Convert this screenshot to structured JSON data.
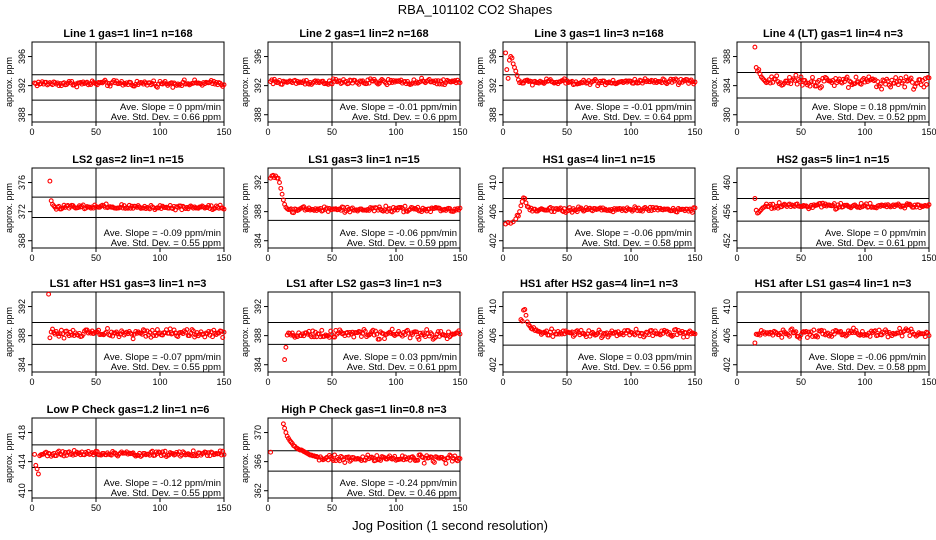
{
  "figure": {
    "title": "RBA_101102  CO2 Shapes",
    "xlabel": "Jog Position (1 second resolution)"
  },
  "chart_data": [
    {
      "type": "scatter",
      "title": "Line 1 gas=1 lin=1 n=168",
      "ylabel": "approx. ppm",
      "xlim": [
        0,
        150
      ],
      "xticks": [
        0,
        50,
        100,
        150
      ],
      "ylim": [
        387,
        398
      ],
      "yticks": [
        388,
        392,
        396
      ],
      "hlines": [
        393.5,
        390
      ],
      "mean": 392.3,
      "noise": 0.25,
      "slope": "Ave. Slope =  0  ppm/min",
      "sd": "Ave. Std. Dev. =  0.66  ppm",
      "x_start": 2,
      "transient": []
    },
    {
      "type": "scatter",
      "title": "Line 2 gas=1 lin=2 n=168",
      "ylabel": "approx. ppm",
      "xlim": [
        0,
        150
      ],
      "xticks": [
        0,
        50,
        100,
        150
      ],
      "ylim": [
        387,
        398
      ],
      "yticks": [
        388,
        392,
        396
      ],
      "hlines": [
        393.5,
        390
      ],
      "mean": 392.5,
      "noise": 0.25,
      "slope": "Ave. Slope =  -0.01  ppm/min",
      "sd": "Ave. Std. Dev. =  0.6  ppm",
      "x_start": 2,
      "transient": []
    },
    {
      "type": "scatter",
      "title": "Line 3 gas=1 lin=3 n=168",
      "ylabel": "approx. ppm",
      "xlim": [
        0,
        150
      ],
      "xticks": [
        0,
        50,
        100,
        150
      ],
      "ylim": [
        387,
        398
      ],
      "yticks": [
        388,
        392,
        396
      ],
      "hlines": [
        393.5,
        390
      ],
      "mean": 392.5,
      "noise": 0.25,
      "slope": "Ave. Slope =  -0.01  ppm/min",
      "sd": "Ave. Std. Dev. =  0.64  ppm",
      "x_start": 14,
      "transient": [
        [
          2,
          396.5
        ],
        [
          3,
          394.2
        ],
        [
          4,
          393
        ],
        [
          5,
          395.5
        ],
        [
          6,
          396
        ],
        [
          7,
          395.8
        ],
        [
          8,
          395
        ],
        [
          9,
          394.5
        ],
        [
          10,
          394
        ],
        [
          11,
          393.4
        ],
        [
          12,
          392.8
        ],
        [
          13,
          392.4
        ]
      ]
    },
    {
      "type": "scatter",
      "title": "Line 4 (LT) gas=1 lin=4 n=3",
      "ylabel": "approx. ppm",
      "xlim": [
        0,
        150
      ],
      "xticks": [
        0,
        50,
        100,
        150
      ],
      "ylim": [
        379,
        390
      ],
      "yticks": [
        380,
        384,
        388
      ],
      "hlines": [
        385.8,
        382.3
      ],
      "mean": 384.5,
      "noise": 0.5,
      "slope": "Ave. Slope =  0.18  ppm/min",
      "sd": "Ave. Std. Dev. =  0.52  ppm",
      "x_start": 24,
      "transient": [
        [
          14,
          389.3
        ],
        [
          15,
          386.5
        ],
        [
          16,
          386
        ],
        [
          17,
          386.2
        ],
        [
          18,
          385.6
        ],
        [
          19,
          385.2
        ],
        [
          20,
          385
        ],
        [
          21,
          384.8
        ],
        [
          22,
          384.6
        ],
        [
          23,
          384.4
        ]
      ]
    },
    {
      "type": "scatter",
      "title": "LS2 gas=2 lin=1 n=15",
      "ylabel": "approx. ppm",
      "xlim": [
        0,
        150
      ],
      "xticks": [
        0,
        50,
        100,
        150
      ],
      "ylim": [
        367,
        378
      ],
      "yticks": [
        368,
        372,
        376
      ],
      "hlines": [
        374,
        371.2
      ],
      "mean": 372.6,
      "noise": 0.22,
      "slope": "Ave. Slope =  -0.09  ppm/min",
      "sd": "Ave. Std. Dev. =  0.55  ppm",
      "x_start": 18,
      "transient": [
        [
          14,
          376.2
        ],
        [
          15,
          373.5
        ],
        [
          16,
          373
        ],
        [
          17,
          372.8
        ]
      ]
    },
    {
      "type": "scatter",
      "title": "LS1 gas=3 lin=1 n=15",
      "ylabel": "approx. ppm",
      "xlim": [
        0,
        150
      ],
      "xticks": [
        0,
        50,
        100,
        150
      ],
      "ylim": [
        383,
        394
      ],
      "yticks": [
        384,
        388,
        392
      ],
      "hlines": [
        389.8,
        386.8
      ],
      "mean": 388.3,
      "noise": 0.22,
      "slope": "Ave. Slope =  -0.06  ppm/min",
      "sd": "Ave. Std. Dev. =  0.59  ppm",
      "x_start": 16,
      "transient": [
        [
          2,
          392.6
        ],
        [
          3,
          392.9
        ],
        [
          4,
          393
        ],
        [
          5,
          392.7
        ],
        [
          6,
          392.9
        ],
        [
          7,
          392.6
        ],
        [
          8,
          392.6
        ],
        [
          9,
          392
        ],
        [
          10,
          391.2
        ],
        [
          11,
          390.4
        ],
        [
          12,
          389.6
        ],
        [
          13,
          389
        ],
        [
          14,
          388.6
        ],
        [
          15,
          388.4
        ]
      ]
    },
    {
      "type": "scatter",
      "title": "HS1 gas=4 lin=1 n=15",
      "ylabel": "approx. ppm",
      "xlim": [
        0,
        150
      ],
      "xticks": [
        0,
        50,
        100,
        150
      ],
      "ylim": [
        401,
        412
      ],
      "yticks": [
        402,
        406,
        410
      ],
      "hlines": [
        407.8,
        404.7
      ],
      "mean": 406.3,
      "noise": 0.22,
      "slope": "Ave. Slope =  -0.06  ppm/min",
      "sd": "Ave. Std. Dev. =  0.58  ppm",
      "x_start": 20,
      "transient": [
        [
          2,
          404.3
        ],
        [
          4,
          404.5
        ],
        [
          6,
          404.4
        ],
        [
          8,
          404.6
        ],
        [
          10,
          405
        ],
        [
          11,
          405.5
        ],
        [
          12,
          405.4
        ],
        [
          13,
          406
        ],
        [
          14,
          406.8
        ],
        [
          15,
          407.4
        ],
        [
          16,
          407.9
        ],
        [
          17,
          407.8
        ],
        [
          18,
          407.2
        ],
        [
          19,
          406.7
        ]
      ]
    },
    {
      "type": "scatter",
      "title": "HS2 gas=5 lin=1 n=15",
      "ylabel": "approx. ppm",
      "xlim": [
        0,
        150
      ],
      "xticks": [
        0,
        50,
        100,
        150
      ],
      "ylim": [
        451,
        462
      ],
      "yticks": [
        452,
        456,
        460
      ],
      "hlines": [
        457.8,
        454.7
      ],
      "mean": 456.8,
      "noise": 0.22,
      "slope": "Ave. Slope =  0  ppm/min",
      "sd": "Ave. Std. Dev. =  0.61  ppm",
      "x_start": 22,
      "transient": [
        [
          14,
          457.8
        ],
        [
          15,
          456.2
        ],
        [
          16,
          455.8
        ],
        [
          17,
          455.9
        ],
        [
          18,
          456.1
        ],
        [
          19,
          456.3
        ],
        [
          20,
          456.5
        ],
        [
          21,
          456.6
        ]
      ]
    },
    {
      "type": "scatter",
      "title": "LS1 after HS1 gas=3 lin=1 n=3",
      "ylabel": "approx. ppm",
      "xlim": [
        0,
        150
      ],
      "xticks": [
        0,
        50,
        100,
        150
      ],
      "ylim": [
        383,
        394
      ],
      "yticks": [
        384,
        388,
        392
      ],
      "hlines": [
        389.8,
        386.8
      ],
      "mean": 388.3,
      "noise": 0.35,
      "slope": "Ave. Slope =  -0.07  ppm/min",
      "sd": "Ave. Std. Dev. =  0.55  ppm",
      "x_start": 18,
      "transient": [
        [
          13,
          393.7
        ],
        [
          14,
          387.7
        ],
        [
          15,
          388.5
        ],
        [
          16,
          388.9
        ],
        [
          17,
          388.4
        ]
      ]
    },
    {
      "type": "scatter",
      "title": "LS1 after LS2 gas=3 lin=1 n=3",
      "ylabel": "approx. ppm",
      "xlim": [
        0,
        150
      ],
      "xticks": [
        0,
        50,
        100,
        150
      ],
      "ylim": [
        383,
        394
      ],
      "yticks": [
        384,
        388,
        392
      ],
      "hlines": [
        389.8,
        386.8
      ],
      "mean": 388.2,
      "noise": 0.35,
      "slope": "Ave. Slope =  0.03  ppm/min",
      "sd": "Ave. Std. Dev. =  0.61  ppm",
      "x_start": 15,
      "transient": [
        [
          13,
          384.7
        ],
        [
          14,
          386.4
        ]
      ]
    },
    {
      "type": "scatter",
      "title": "HS1 after HS2 gas=4 lin=1 n=3",
      "ylabel": "approx. ppm",
      "xlim": [
        0,
        150
      ],
      "xticks": [
        0,
        50,
        100,
        150
      ],
      "ylim": [
        401,
        412
      ],
      "yticks": [
        402,
        406,
        410
      ],
      "hlines": [
        407.8,
        404.7
      ],
      "mean": 406.3,
      "noise": 0.3,
      "slope": "Ave. Slope =  0.03  ppm/min",
      "sd": "Ave. Std. Dev. =  0.56  ppm",
      "x_start": 30,
      "transient": [
        [
          14,
          408.2
        ],
        [
          15,
          408
        ],
        [
          16,
          409.5
        ],
        [
          17,
          409.6
        ],
        [
          18,
          408.8
        ],
        [
          19,
          407.9
        ],
        [
          20,
          407.5
        ],
        [
          21,
          407.3
        ],
        [
          22,
          407
        ],
        [
          23,
          406.9
        ],
        [
          24,
          407.1
        ],
        [
          25,
          406.7
        ],
        [
          26,
          406.8
        ],
        [
          27,
          406.6
        ],
        [
          28,
          406.6
        ],
        [
          29,
          406.5
        ]
      ]
    },
    {
      "type": "scatter",
      "title": "HS1 after LS1 gas=4 lin=1 n=3",
      "ylabel": "approx. ppm",
      "xlim": [
        0,
        150
      ],
      "xticks": [
        0,
        50,
        100,
        150
      ],
      "ylim": [
        401,
        412
      ],
      "yticks": [
        402,
        406,
        410
      ],
      "hlines": [
        407.8,
        404.7
      ],
      "mean": 406.3,
      "noise": 0.35,
      "slope": "Ave. Slope =  -0.06  ppm/min",
      "sd": "Ave. Std. Dev. =  0.58  ppm",
      "x_start": 16,
      "transient": [
        [
          14,
          405
        ],
        [
          15,
          406.2
        ]
      ]
    },
    {
      "type": "scatter",
      "title": "Low P Check gas=1.2 lin=1 n=6",
      "ylabel": "approx. ppm",
      "xlim": [
        0,
        150
      ],
      "xticks": [
        0,
        50,
        100,
        150
      ],
      "ylim": [
        409,
        420
      ],
      "yticks": [
        410,
        414,
        418
      ],
      "hlines": [
        416.3,
        413.2
      ],
      "mean": 415.1,
      "noise": 0.25,
      "slope": "Ave. Slope =  -0.12  ppm/min",
      "sd": "Ave. Std. Dev. =  0.55  ppm",
      "x_start": 7,
      "transient": [
        [
          2,
          415
        ],
        [
          3,
          413.5
        ],
        [
          4,
          413
        ],
        [
          5,
          412.3
        ],
        [
          6,
          414.8
        ]
      ]
    },
    {
      "type": "scatter",
      "title": "High P Check gas=1 lin=0.8 n=3",
      "ylabel": "approx. ppm",
      "xlim": [
        0,
        150
      ],
      "xticks": [
        0,
        50,
        100,
        150
      ],
      "ylim": [
        361,
        372
      ],
      "yticks": [
        362,
        366,
        370
      ],
      "hlines": [
        367.5,
        364.7
      ],
      "mean": 366.4,
      "noise": 0.3,
      "slope": "Ave. Slope =  -0.24  ppm/min",
      "sd": "Ave. Std. Dev. =  0.46  ppm",
      "x_start": 40,
      "transient": [
        [
          2,
          367.3
        ],
        [
          12,
          371.2
        ],
        [
          13,
          370.6
        ],
        [
          14,
          370
        ],
        [
          15,
          369.5
        ],
        [
          16,
          369.2
        ],
        [
          17,
          368.9
        ],
        [
          18,
          368.7
        ],
        [
          19,
          368.5
        ],
        [
          20,
          368.2
        ],
        [
          21,
          368.1
        ],
        [
          22,
          367.9
        ],
        [
          23,
          367.8
        ],
        [
          24,
          367.7
        ],
        [
          25,
          367.6
        ],
        [
          26,
          367.6
        ],
        [
          27,
          367.5
        ],
        [
          28,
          367.4
        ],
        [
          29,
          367.3
        ],
        [
          30,
          367.2
        ],
        [
          31,
          367.1
        ],
        [
          32,
          367.0
        ],
        [
          33,
          366.9
        ],
        [
          34,
          366.9
        ],
        [
          35,
          366.8
        ],
        [
          36,
          366.8
        ],
        [
          37,
          366.7
        ],
        [
          38,
          366.7
        ],
        [
          39,
          366.6
        ]
      ]
    }
  ]
}
